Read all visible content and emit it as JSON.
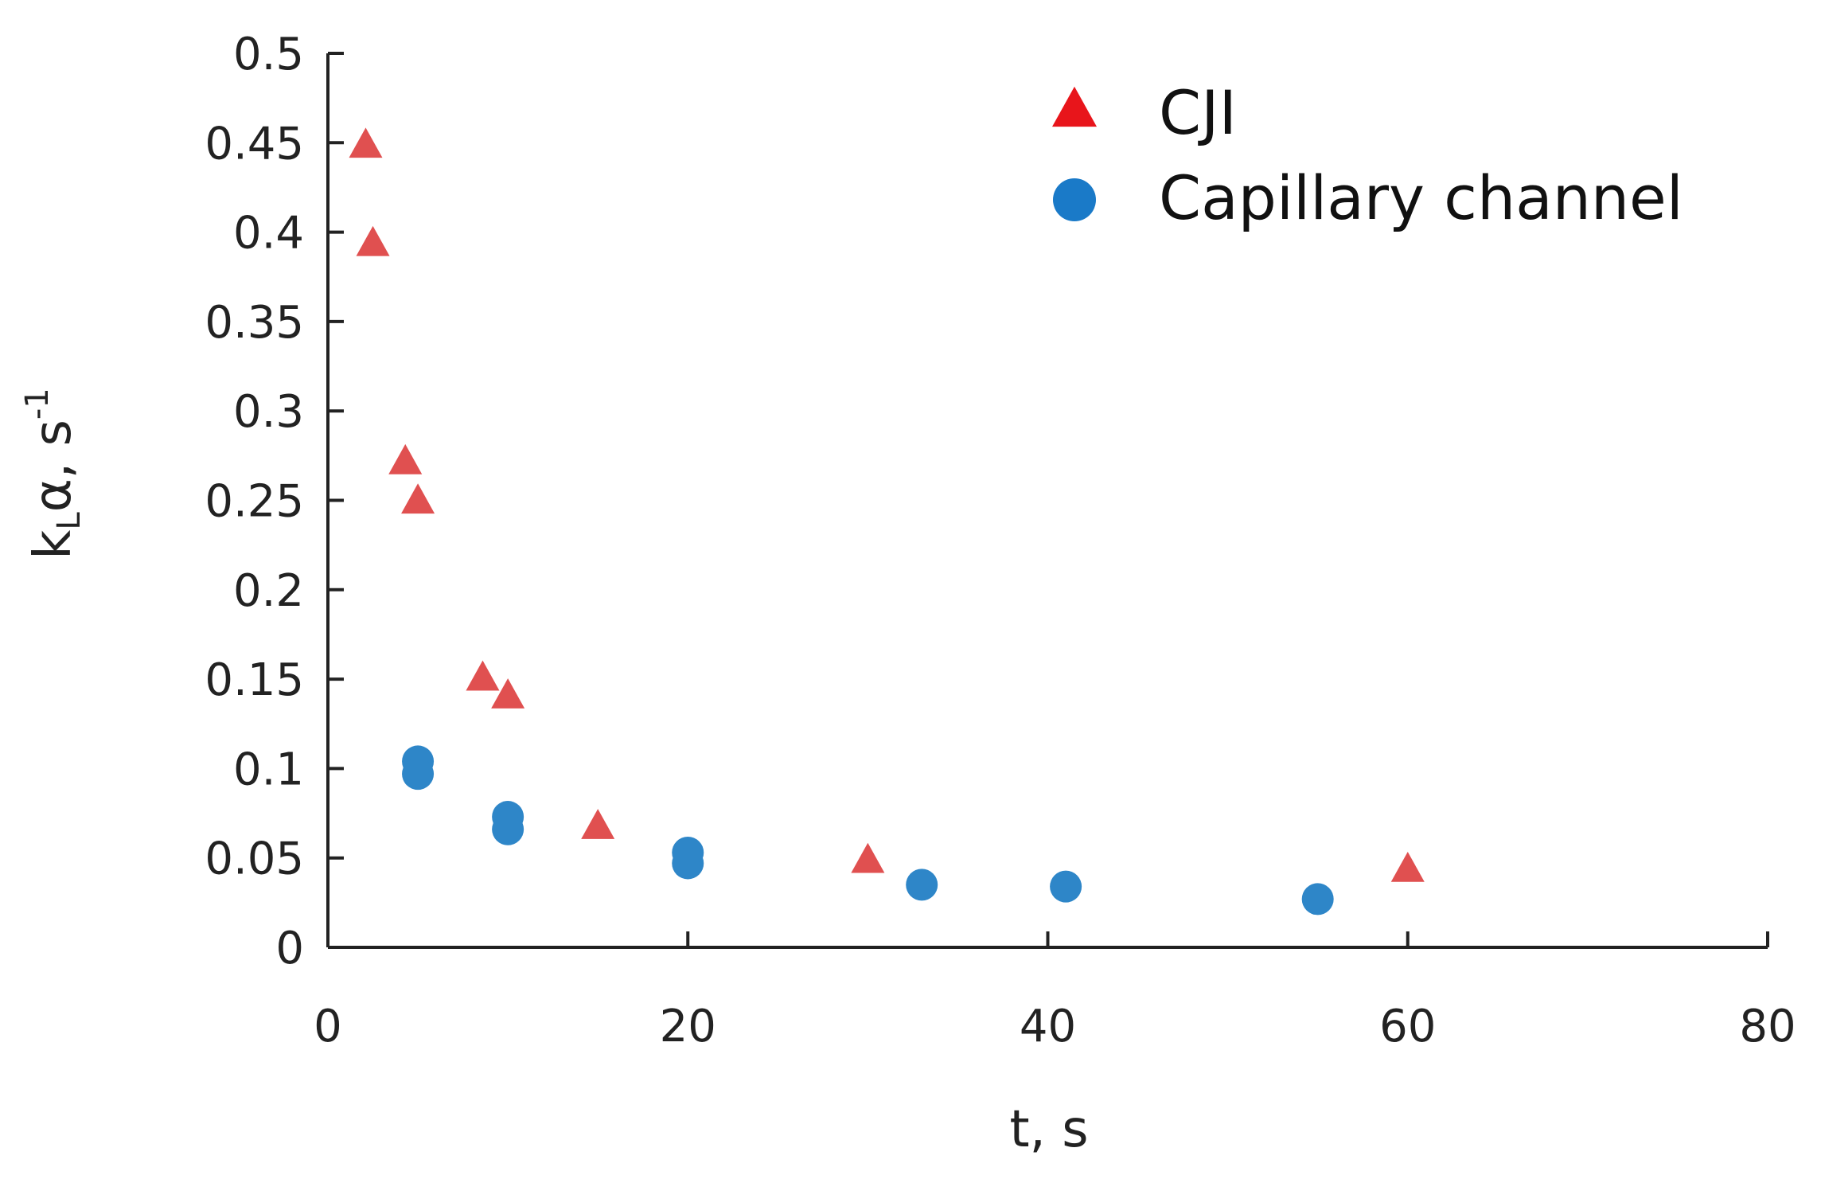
{
  "chart_data": {
    "type": "scatter",
    "title": "",
    "xlabel": "t, s",
    "ylabel": {
      "base": "k",
      "sub": "L",
      "mid": "α, s",
      "sup": "-1"
    },
    "xlim": [
      0,
      80
    ],
    "ylim": [
      0,
      0.5
    ],
    "x_ticks": [
      0,
      20,
      40,
      60,
      80
    ],
    "x_tick_labels": [
      "0",
      "20",
      "40",
      "60",
      "80"
    ],
    "y_ticks": [
      0,
      0.05,
      0.1,
      0.15,
      0.2,
      0.25,
      0.3,
      0.35,
      0.4,
      0.45,
      0.5
    ],
    "y_tick_labels": [
      "0",
      "0.05",
      "0.1",
      "0.15",
      "0.2",
      "0.25",
      "0.3",
      "0.35",
      "0.4",
      "0.45",
      "0.5"
    ],
    "grid": false,
    "legend_position": "top-right",
    "series": [
      {
        "name": "CJI",
        "marker": "triangle",
        "color": "#e05050",
        "legend_color": "#e8151b",
        "points": [
          {
            "x": 2.1,
            "y": 0.448
          },
          {
            "x": 2.5,
            "y": 0.393
          },
          {
            "x": 4.3,
            "y": 0.271
          },
          {
            "x": 5.0,
            "y": 0.249
          },
          {
            "x": 8.6,
            "y": 0.15
          },
          {
            "x": 10.0,
            "y": 0.14
          },
          {
            "x": 15.0,
            "y": 0.067
          },
          {
            "x": 30.0,
            "y": 0.048
          },
          {
            "x": 60.0,
            "y": 0.043
          }
        ]
      },
      {
        "name": "Capillary channel",
        "marker": "circle",
        "color": "#2e86c8",
        "legend_color": "#1a7ac8",
        "points": [
          {
            "x": 5.0,
            "y": 0.104
          },
          {
            "x": 5.0,
            "y": 0.097
          },
          {
            "x": 10.0,
            "y": 0.073
          },
          {
            "x": 10.0,
            "y": 0.066
          },
          {
            "x": 20.0,
            "y": 0.053
          },
          {
            "x": 20.0,
            "y": 0.047
          },
          {
            "x": 33.0,
            "y": 0.035
          },
          {
            "x": 41.0,
            "y": 0.034
          },
          {
            "x": 55.0,
            "y": 0.027
          }
        ]
      }
    ]
  }
}
